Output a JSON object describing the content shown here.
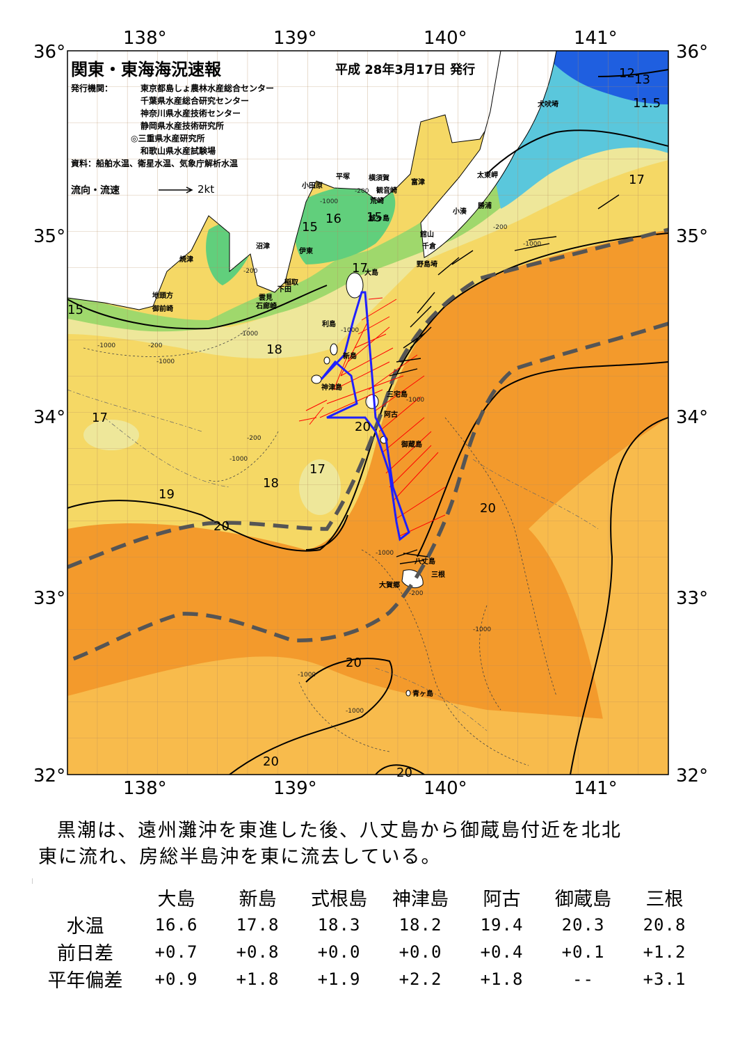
{
  "header": {
    "title": "関東・東海海況速報",
    "issue_date": "平成 28年3月17日 発行",
    "agency_label": "発行機関：",
    "agencies": [
      "東京都島しょ農林水産総合センター",
      "千葉県水産総合研究センター",
      "神奈川県水産技術センター",
      "静岡県水産技術研究所",
      "◎三重県水産研究所",
      "和歌山県水産試験場"
    ],
    "sources": "資料：船舶水温、衛星水温、気象庁解析水温",
    "legend_label": "流向・流速",
    "legend_scale": "2kt"
  },
  "axes": {
    "lon_ticks": [
      "138°",
      "139°",
      "140°",
      "141°"
    ],
    "lat_ticks": [
      "36°",
      "35°",
      "34°",
      "33°",
      "32°"
    ]
  },
  "place_names": {
    "inubo": "犬吠埼",
    "taito": "太東岬",
    "katsuura": "勝浦",
    "kominato": "小湊",
    "tateyama": "館山",
    "chikura": "千倉",
    "nojima": "野島埼",
    "futtsu": "富津",
    "kannon": "観音崎",
    "yokosuka": "横須賀",
    "hiratsuka": "平塚",
    "odawara": "小田原",
    "arasaki": "荒崎",
    "jogashima": "城ヶ島",
    "numazu": "沼津",
    "ito": "伊東",
    "inatori": "稲取",
    "shimoda": "下田",
    "kumomi": "雲見",
    "irozaki": "石廊崎",
    "yaizu": "焼津",
    "jitokata": "地頭方",
    "omaezaki": "御前崎",
    "oshima_lbl": "大島",
    "toshima": "利島",
    "niijima": "新島",
    "kozushima": "神津島",
    "miyakejima": "三宅島",
    "ako": "阿古",
    "mikurajima": "御蔵島",
    "hachijojima": "八丈島",
    "mine": "三根",
    "okago": "大賀郷",
    "aogashima": "青ヶ島"
  },
  "isotherm_labels": [
    "12",
    "13",
    "11.5",
    "17",
    "15",
    "16",
    "15",
    "17",
    "15",
    "18",
    "17",
    "20",
    "17",
    "18",
    "19",
    "20",
    "20",
    "20",
    "20",
    "20"
  ],
  "depth_labels": [
    "-200",
    "-1000",
    "-200",
    "-200",
    "-1000",
    "-1000",
    "-200",
    "-1000",
    "-200",
    "-1000",
    "-1000",
    "-1000",
    "-1000",
    "-1000",
    "-1000",
    "-1000",
    "-200",
    "-1000"
  ],
  "summary": {
    "line1": "黒潮は、遠州灘沖を東進した後、八丈島から御蔵島付近を北北",
    "line2": "東に流れ、房総半島沖を東に流去している。"
  },
  "table": {
    "stations": [
      "大島",
      "新島",
      "式根島",
      "神津島",
      "阿古",
      "御蔵島",
      "三根"
    ],
    "rows": [
      {
        "label": "水温",
        "values": [
          "16.6",
          "17.8",
          "18.3",
          "18.2",
          "19.4",
          "20.3",
          "20.8"
        ]
      },
      {
        "label": "前日差",
        "values": [
          "+0.7",
          "+0.8",
          "+0.0",
          "+0.0",
          "+0.4",
          "+0.1",
          "+1.2"
        ]
      },
      {
        "label": "平年偏差",
        "values": [
          "+0.9",
          "+1.8",
          "+1.9",
          "+2.2",
          "+1.8",
          "--",
          "+3.1"
        ]
      }
    ]
  },
  "colors": {
    "sea_orange": "#f39a2c",
    "sea_light_orange": "#f8bb4c",
    "sea_yellow": "#f5d865",
    "sea_light_yellow": "#eee79a",
    "sea_green": "#9fd86c",
    "sea_bright_green": "#61cf7c",
    "sea_cyan": "#5ac7dc",
    "sea_blue": "#1f5fe0",
    "kuroshio_axis": "#555555",
    "ship_track": "#2020ff",
    "current_vectors": "#ff0000"
  }
}
